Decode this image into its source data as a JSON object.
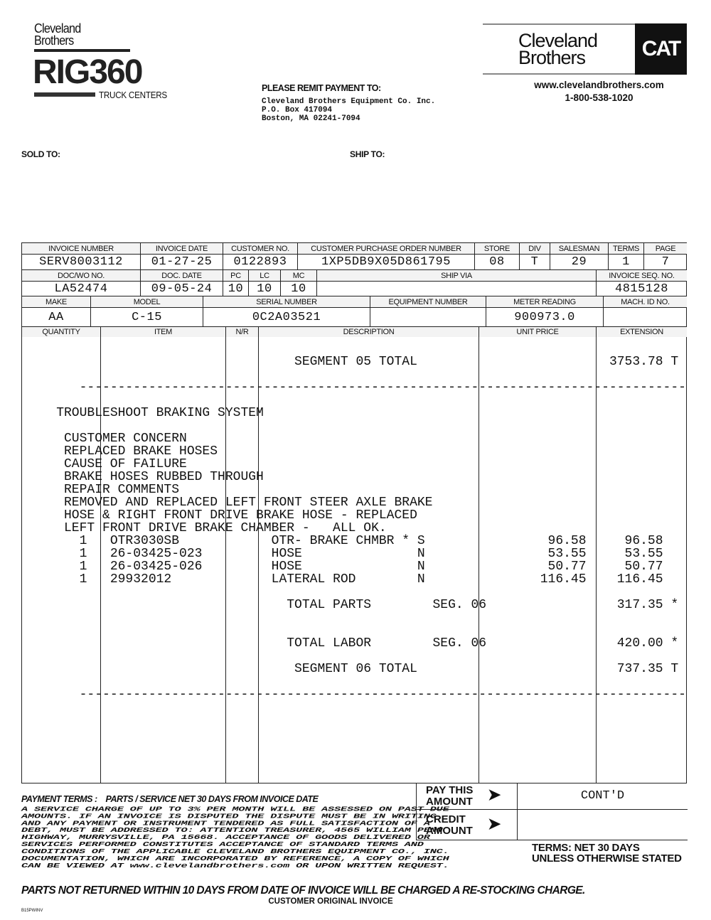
{
  "header": {
    "left_logo": {
      "line1": "Cleveland",
      "line2": "Brothers",
      "brand": "RIG360",
      "sub": "TRUCK CENTERS"
    },
    "right_logo": {
      "line1": "Cleveland",
      "line2": "Brothers",
      "badge": "CAT"
    },
    "website": "www.clevelandbrothers.com",
    "phone": "1-800-538-1020",
    "remit": {
      "title": "PLEASE REMIT PAYMENT TO:",
      "lines": [
        "Cleveland Brothers Equipment Co. Inc.",
        "P.O. Box 417094",
        "Boston, MA  02241-7094"
      ]
    },
    "sold_to_label": "SOLD TO:",
    "ship_to_label": "SHIP TO:"
  },
  "info": {
    "row1": {
      "labels": [
        "INVOICE NUMBER",
        "INVOICE DATE",
        "CUSTOMER NO.",
        "CUSTOMER PURCHASE ORDER NUMBER",
        "STORE",
        "DIV",
        "SALESMAN",
        "TERMS",
        "PAGE"
      ],
      "values": [
        "SERV8003112",
        "01-27-25",
        "0122893",
        "1XP5DB9X05D861795",
        "08",
        "T",
        "29",
        "1",
        "7"
      ]
    },
    "row2": {
      "labels": [
        "DOC/WO NO.",
        "DOC. DATE",
        "PC",
        "LC",
        "MC",
        "SHIP VIA",
        "INVOICE SEQ. NO."
      ],
      "values": [
        "LA52474",
        "09-05-24",
        "10",
        "10",
        "10",
        "",
        "4815128"
      ]
    },
    "row3": {
      "labels": [
        "MAKE",
        "MODEL",
        "SERIAL NUMBER",
        "EQUIPMENT NUMBER",
        "METER READING",
        "MACH. ID NO."
      ],
      "values": [
        "AA",
        "C-15",
        "0C2A03521",
        "",
        "900973.0",
        ""
      ]
    },
    "columns": [
      "QUANTITY",
      "ITEM",
      "N/R",
      "DESCRIPTION",
      "UNIT PRICE",
      "EXTENSION"
    ]
  },
  "body": {
    "seg05_label": "SEGMENT 05 TOTAL",
    "seg05_total": "3753.78 T",
    "dashes": "-------------------------------------------------------------------------------",
    "job_title": "TROUBLESHOOT BRAKING SYSTEM",
    "notes": [
      "CUSTOMER CONCERN",
      "REPLACED BRAKE HOSES",
      "CAUSE OF FAILURE",
      "BRAKE HOSES RUBBED THROUGH",
      "REPAIR COMMENTS",
      "REMOVED AND REPLACED LEFT FRONT STEER AXLE BRAKE",
      "HOSE & RIGHT FRONT DRIVE BRAKE HOSE - REPLACED",
      "LEFT FRONT DRIVE BRAKE CHAMBER -   ALL OK."
    ],
    "items": [
      {
        "qty": "1",
        "item": "OTR3030SB",
        "desc": "OTR- BRAKE CHMBR * S",
        "unit": "96.58",
        "ext": "96.58"
      },
      {
        "qty": "1",
        "item": "26-03425-023",
        "desc": "HOSE               N",
        "unit": "53.55",
        "ext": "53.55"
      },
      {
        "qty": "1",
        "item": "26-03425-026",
        "desc": "HOSE               N",
        "unit": "50.77",
        "ext": "50.77"
      },
      {
        "qty": "1",
        "item": "29932012",
        "desc": "LATERAL ROD        N",
        "unit": "116.45",
        "ext": "116.45"
      }
    ],
    "total_parts": {
      "label": "TOTAL PARTS",
      "seg": "SEG. 06",
      "value": "317.35 *"
    },
    "total_labor": {
      "label": "TOTAL LABOR",
      "seg": "SEG. 06",
      "value": "420.00 *"
    },
    "seg06_label": "SEGMENT 06 TOTAL",
    "seg06_total": "737.35 T"
  },
  "footer": {
    "payment_terms_label": "PAYMENT TERMS :",
    "payment_terms_value": "PARTS / SERVICE NET 30 DAYS FROM INVOICE DATE",
    "fine_print": "A SERVICE CHARGE OF UP TO 3% PER MONTH WILL BE ASSESSED ON PAST DUE\nAMOUNTS. IF AN INVOICE IS DISPUTED THE DISPUTE MUST BE IN WRITING\nAND ANY PAYMENT OR INSTRUMENT TENDERED AS FULL SATISFACTION OF A\nDEBT, MUST BE ADDRESSED TO: ATTENTION TREASURER, 4565 WILLIAM PENN\nHIGHWAY, MURRYSVILLE, PA 15668. ACCEPTANCE OF GOODS DELIVERED OR\nSERVICES PERFORMED CONSTITUTES ACCEPTANCE OF STANDARD TERMS AND\nCONDITIONS OF THE APPLICABLE CLEVELAND BROTHERS EQUIPMENT CO., INC.\nDOCUMENTATION, WHICH ARE INCORPORATED BY REFERENCE, A COPY OF WHICH\nCAN BE VIEWED AT www.clevelandbrothers.com OR UPON WRITTEN REQUEST.",
    "pay_this_amount_l1": "PAY THIS",
    "pay_this_amount_l2": "AMOUNT",
    "pay_this_amount_value": "CONT'D",
    "credit_amount_l1": "CREDIT",
    "credit_amount_l2": "AMOUNT",
    "credit_amount_value": "",
    "terms_l1": "TERMS: NET 30 DAYS",
    "terms_l2": "UNLESS OTHERWISE STATED",
    "restock_notice": "PARTS NOT RETURNED WITHIN 10 DAYS FROM DATE OF INVOICE WILL BE CHARGED A RE-STOCKING CHARGE.",
    "copy_label": "CUSTOMER ORIGINAL INVOICE",
    "form_code": "B15PWINV"
  }
}
